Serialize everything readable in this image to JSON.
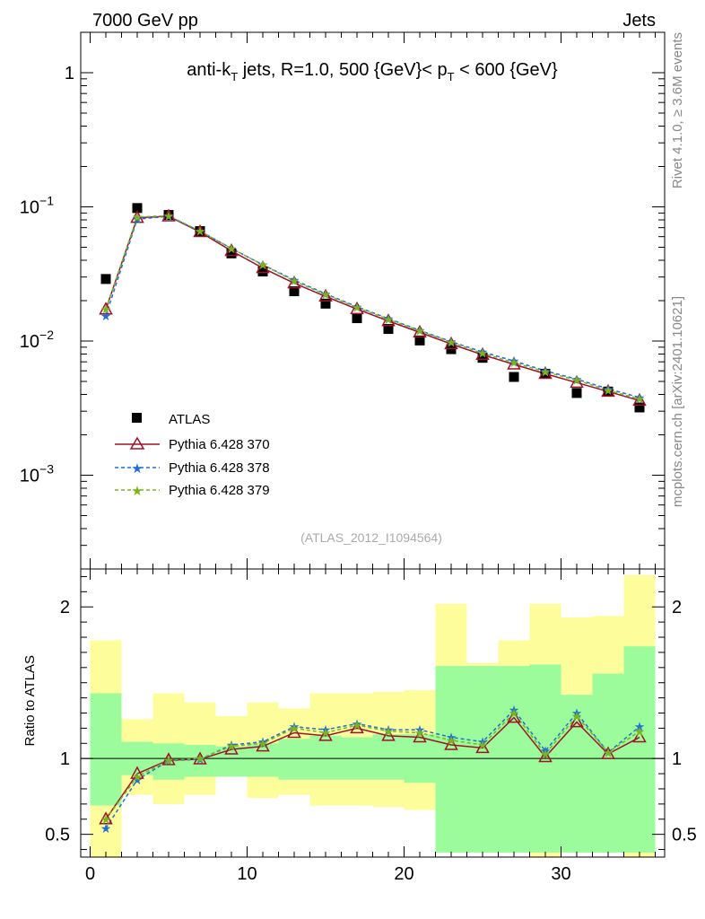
{
  "header": {
    "left": "7000 GeV pp",
    "right": "Jets",
    "title_main": "anti-k",
    "title_sub": "T",
    "title_rest": " jets, R=1.0, 500 {GeV}< p",
    "title_sub2": "T",
    "title_end": " < 600 {GeV}",
    "watermark": "(ATLAS_2012_I1094564)",
    "side_top": "Rivet 4.1.0, ≥ 3.6M events",
    "side_bottom": "mcplots.cern.ch [arXiv:2401.10621]",
    "ratio_label": "Ratio to ATLAS"
  },
  "colors": {
    "atlas": "#000000",
    "p370": "#a0102a",
    "p378": "#1f6fd6",
    "p379": "#7ab51d",
    "band_inner": "#9cfc9c",
    "band_outer": "#fdfd9c"
  },
  "legend": [
    {
      "name": "ATLAS"
    },
    {
      "name": "Pythia 6.428 370"
    },
    {
      "name": "Pythia 6.428 378"
    },
    {
      "name": "Pythia 6.428 379"
    }
  ],
  "chart_data": {
    "type": "scatter",
    "x": [
      1,
      3,
      5,
      7,
      9,
      11,
      13,
      15,
      17,
      19,
      21,
      23,
      25,
      27,
      29,
      31,
      33,
      35
    ],
    "edges": [
      0,
      2,
      4,
      6,
      8,
      10,
      12,
      14,
      16,
      18,
      20,
      22,
      24,
      26,
      28,
      30,
      32,
      34,
      36
    ],
    "xlim": [
      -0.6,
      36.6
    ],
    "ylim_log": [
      0.0002,
      2
    ],
    "ratio_ylim": [
      0.35,
      2.25
    ],
    "xticks": [
      0,
      10,
      20,
      30
    ],
    "yticks": [
      {
        "v": 1,
        "label": "1"
      },
      {
        "v": 0.1,
        "label": "10",
        "exp": "−1"
      },
      {
        "v": 0.01,
        "label": "10",
        "exp": "−2"
      },
      {
        "v": 0.001,
        "label": "10",
        "exp": "−3"
      }
    ],
    "ratio_ticks": [
      {
        "v": 0.5,
        "label": "0.5"
      },
      {
        "v": 1,
        "label": "1"
      },
      {
        "v": 2,
        "label": "2"
      }
    ],
    "series": [
      {
        "name": "ATLAS",
        "values": [
          0.029,
          0.098,
          0.087,
          0.066,
          0.045,
          0.033,
          0.0235,
          0.019,
          0.0148,
          0.0123,
          0.0101,
          0.0087,
          0.0075,
          0.0054,
          0.0057,
          0.0041,
          0.0042,
          0.0032
        ]
      },
      {
        "name": "Pythia 6.428 370",
        "values": [
          0.0172,
          0.083,
          0.085,
          0.065,
          0.047,
          0.035,
          0.027,
          0.0215,
          0.0173,
          0.0141,
          0.0116,
          0.0095,
          0.0079,
          0.0067,
          0.0057,
          0.0049,
          0.0042,
          0.0036
        ]
      },
      {
        "name": "Pythia 6.428 378",
        "values": [
          0.0154,
          0.081,
          0.085,
          0.066,
          0.049,
          0.037,
          0.0285,
          0.0225,
          0.018,
          0.0147,
          0.012,
          0.0099,
          0.0083,
          0.0071,
          0.006,
          0.0052,
          0.0044,
          0.0038
        ]
      },
      {
        "name": "Pythia 6.428 379",
        "values": [
          0.0173,
          0.084,
          0.086,
          0.066,
          0.049,
          0.037,
          0.028,
          0.0222,
          0.0178,
          0.0145,
          0.0119,
          0.0098,
          0.0081,
          0.0069,
          0.0059,
          0.0051,
          0.0043,
          0.0037
        ]
      }
    ],
    "ratio_series": [
      {
        "name": "Pythia 6.428 370",
        "values": [
          0.6,
          0.9,
          0.99,
          0.995,
          1.06,
          1.08,
          1.17,
          1.15,
          1.2,
          1.15,
          1.14,
          1.09,
          1.07,
          1.27,
          1.01,
          1.24,
          1.03,
          1.14
        ]
      },
      {
        "name": "Pythia 6.428 378",
        "values": [
          0.54,
          0.86,
          0.985,
          0.995,
          1.09,
          1.11,
          1.21,
          1.19,
          1.23,
          1.19,
          1.19,
          1.14,
          1.11,
          1.32,
          1.05,
          1.3,
          1.04,
          1.21
        ]
      },
      {
        "name": "Pythia 6.428 379",
        "values": [
          0.6,
          0.88,
          0.99,
          1.0,
          1.08,
          1.1,
          1.2,
          1.17,
          1.22,
          1.18,
          1.17,
          1.12,
          1.09,
          1.3,
          1.03,
          1.28,
          1.04,
          1.18
        ]
      }
    ],
    "bands": {
      "inner_hi": [
        1.43,
        1.11,
        1.1,
        1.09,
        1.08,
        1.1,
        1.13,
        1.15,
        1.14,
        1.16,
        1.16,
        1.61,
        1.61,
        1.61,
        1.62,
        1.42,
        1.56,
        1.74
      ],
      "inner_lo": [
        0.69,
        0.89,
        0.86,
        0.88,
        0.88,
        0.88,
        0.86,
        0.86,
        0.86,
        0.86,
        0.84,
        0.38,
        0.38,
        0.38,
        0.38,
        0.38,
        0.38,
        0.38
      ],
      "outer_hi": [
        1.78,
        1.26,
        1.43,
        1.37,
        1.28,
        1.37,
        1.33,
        1.43,
        1.43,
        1.44,
        1.45,
        2.02,
        1.63,
        1.78,
        2.02,
        1.93,
        1.94,
        2.21
      ],
      "outer_lo": [
        0.0,
        0.76,
        0.7,
        0.76,
        0.93,
        0.74,
        0.76,
        0.69,
        0.69,
        0.68,
        0.66,
        0.45,
        0.78,
        0.73,
        0.0,
        0.82,
        0.53,
        0.0
      ]
    }
  }
}
